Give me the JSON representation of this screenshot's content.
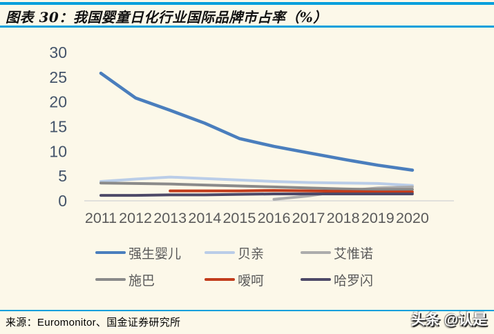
{
  "header": {
    "title": "图表 30：我国婴童日化行业国际品牌市占率（%）"
  },
  "colors": {
    "accent_blue": "#009FDC",
    "background": "#FCF8E9",
    "y_tick_label": "#44546A",
    "x_tick_label": "#5A5A5A",
    "axis_baseline": "#D8D8D8",
    "legend_text": "#595959"
  },
  "chart_data": {
    "type": "line",
    "title": "我国婴童日化行业国际品牌市占率（%）",
    "x": [
      2011,
      2012,
      2013,
      2014,
      2015,
      2016,
      2017,
      2018,
      2019,
      2020
    ],
    "xlabel": "",
    "ylabel": "",
    "ylim": [
      0,
      30
    ],
    "yticks": [
      0,
      5,
      10,
      15,
      20,
      25,
      30
    ],
    "grid": false,
    "legend_position": "bottom",
    "series": [
      {
        "name": "强生婴儿",
        "color": "#4A7EBD",
        "values": [
          25.8,
          20.8,
          18.3,
          15.7,
          12.6,
          11.0,
          9.7,
          8.4,
          7.2,
          6.2
        ]
      },
      {
        "name": "贝亲",
        "color": "#BACDE8",
        "values": [
          3.9,
          4.4,
          4.8,
          4.5,
          4.2,
          3.9,
          3.7,
          3.6,
          3.5,
          3.1
        ]
      },
      {
        "name": "艾惟诺",
        "color": "#ACACAC",
        "values": [
          null,
          null,
          null,
          null,
          null,
          0.3,
          1.0,
          2.0,
          2.6,
          2.8
        ]
      },
      {
        "name": "施巴",
        "color": "#8A8A8A",
        "values": [
          3.6,
          3.5,
          3.4,
          3.2,
          3.0,
          2.8,
          2.6,
          2.4,
          2.3,
          2.3
        ]
      },
      {
        "name": "嗳呵",
        "color": "#C23C1C",
        "values": [
          null,
          null,
          2.0,
          2.0,
          2.0,
          2.1,
          2.0,
          1.9,
          1.8,
          1.8
        ]
      },
      {
        "name": "哈罗闪",
        "color": "#4D4968",
        "values": [
          1.1,
          1.1,
          1.2,
          1.2,
          1.3,
          1.4,
          1.4,
          1.4,
          1.4,
          1.4
        ]
      }
    ]
  },
  "footer": {
    "source": "来源：Euromonitor、国金证券研究所",
    "watermark": "头条 @认是"
  }
}
